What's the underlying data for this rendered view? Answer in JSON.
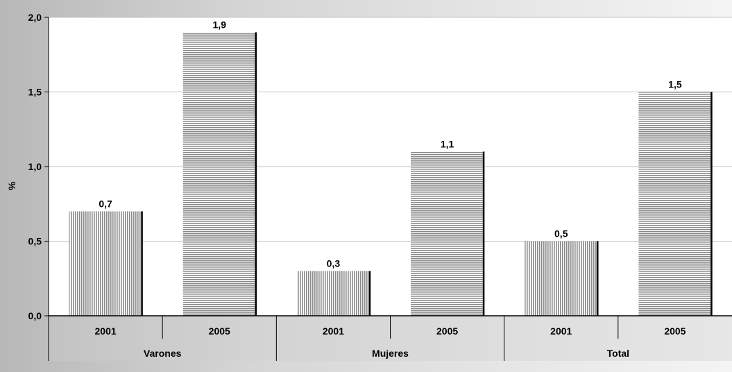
{
  "chart_data": {
    "type": "bar",
    "ylabel": "%",
    "ylim": [
      0,
      2.0
    ],
    "yticks": [
      "0,0",
      "0,5",
      "1,0",
      "1,5",
      "2,0"
    ],
    "ytick_values": [
      0,
      0.5,
      1.0,
      1.5,
      2.0
    ],
    "grid": true,
    "groups": [
      {
        "label": "Varones",
        "bars": [
          {
            "year": "2001",
            "value": 0.7,
            "value_label": "0,7",
            "pattern": "vertical-stripes"
          },
          {
            "year": "2005",
            "value": 1.9,
            "value_label": "1,9",
            "pattern": "horizontal-stripes"
          }
        ]
      },
      {
        "label": "Mujeres",
        "bars": [
          {
            "year": "2001",
            "value": 0.3,
            "value_label": "0,3",
            "pattern": "vertical-stripes"
          },
          {
            "year": "2005",
            "value": 1.1,
            "value_label": "1,1",
            "pattern": "horizontal-stripes"
          }
        ]
      },
      {
        "label": "Total",
        "bars": [
          {
            "year": "2001",
            "value": 0.5,
            "value_label": "0,5",
            "pattern": "vertical-stripes"
          },
          {
            "year": "2005",
            "value": 1.5,
            "value_label": "1,5",
            "pattern": "horizontal-stripes"
          }
        ]
      }
    ],
    "colors": {
      "plot_bg": "#ffffff",
      "stripe": "#8a8a8a",
      "bar_edge": "#000000",
      "grid": "#c0c0c0"
    }
  }
}
